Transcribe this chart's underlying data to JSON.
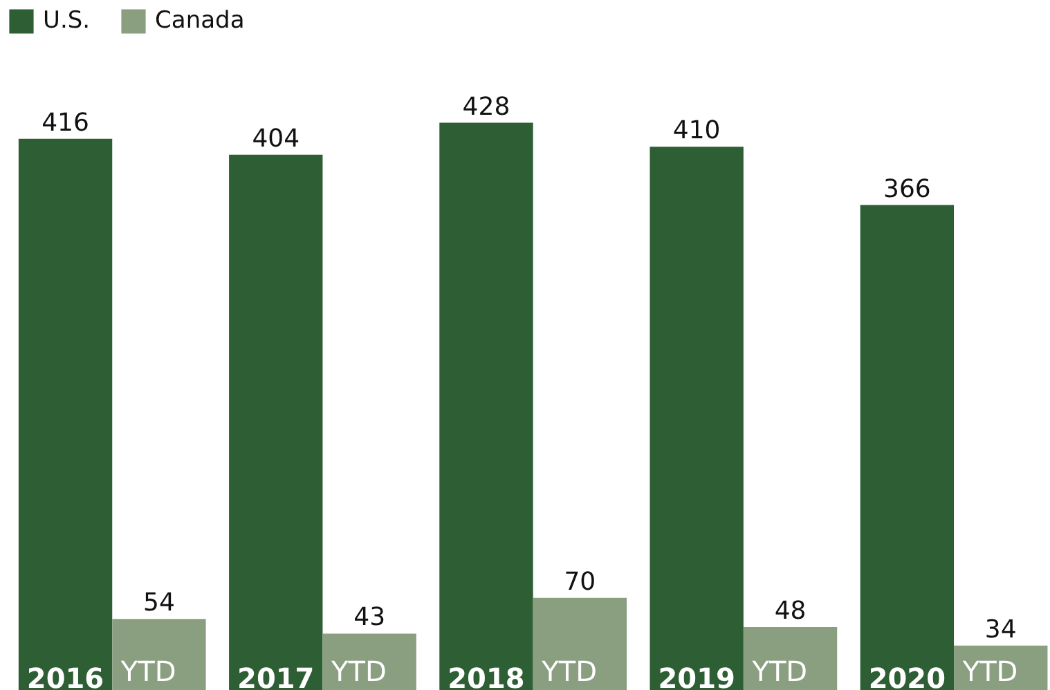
{
  "chart_data": {
    "type": "bar",
    "categories": [
      "2016 YTD",
      "2017 YTD",
      "2018 YTD",
      "2019 YTD",
      "2020 YTD"
    ],
    "series": [
      {
        "name": "U.S.",
        "color": "#2e5e33",
        "values": [
          416,
          404,
          428,
          410,
          366
        ]
      },
      {
        "name": "Canada",
        "color": "#8a9e80",
        "values": [
          54,
          43,
          70,
          48,
          34
        ]
      }
    ],
    "data_labels": true,
    "legend": "top left"
  }
}
